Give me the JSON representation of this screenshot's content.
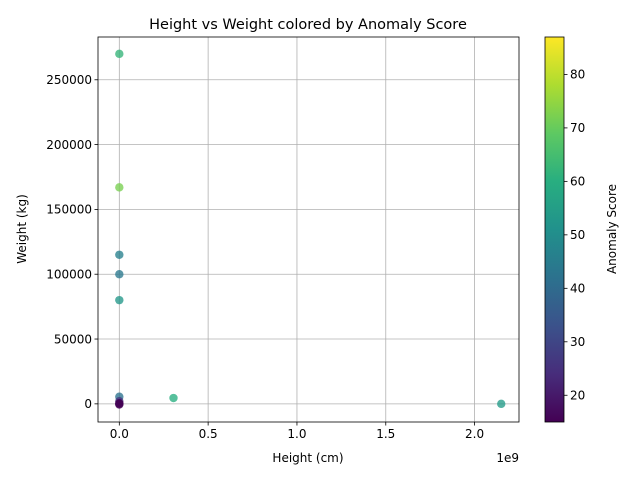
{
  "chart_data": {
    "type": "scatter",
    "title": "Height vs Weight colored by Anomaly Score",
    "xlabel": "Height (cm)",
    "ylabel": "Weight (kg)",
    "x_offset_label": "1e9",
    "xlim": [
      -120000000,
      2250000000
    ],
    "ylim": [
      -14000,
      283000
    ],
    "x_ticks": [
      0,
      0.5,
      1.0,
      1.5,
      2.0
    ],
    "x_tick_labels": [
      "0.0",
      "0.5",
      "1.0",
      "1.5",
      "2.0"
    ],
    "y_ticks": [
      0,
      50000,
      100000,
      150000,
      200000,
      250000
    ],
    "y_tick_labels": [
      "0",
      "50000",
      "100000",
      "150000",
      "200000",
      "250000"
    ],
    "grid": true,
    "colorbar": {
      "label": "Anomaly Score",
      "range": [
        15,
        87
      ],
      "ticks": [
        20,
        30,
        40,
        50,
        60,
        70,
        80
      ],
      "tick_labels": [
        "20",
        "30",
        "40",
        "50",
        "60",
        "70",
        "80"
      ],
      "colormap": "viridis"
    },
    "points": [
      {
        "x": 0,
        "y": 270000,
        "score": 62
      },
      {
        "x": 0,
        "y": 167000,
        "score": 72
      },
      {
        "x": 0,
        "y": 115000,
        "score": 46
      },
      {
        "x": 0,
        "y": 100000,
        "score": 44
      },
      {
        "x": 0,
        "y": 80000,
        "score": 53
      },
      {
        "x": 0,
        "y": 5500,
        "score": 42
      },
      {
        "x": 0,
        "y": 2000,
        "score": 25
      },
      {
        "x": 0,
        "y": 500,
        "score": 15
      },
      {
        "x": 0,
        "y": 0,
        "score": 15
      },
      {
        "x": 0,
        "y": -500,
        "score": 15
      },
      {
        "x": 305000000,
        "y": 4500,
        "score": 60
      },
      {
        "x": 2150000000,
        "y": 0,
        "score": 54
      }
    ]
  }
}
